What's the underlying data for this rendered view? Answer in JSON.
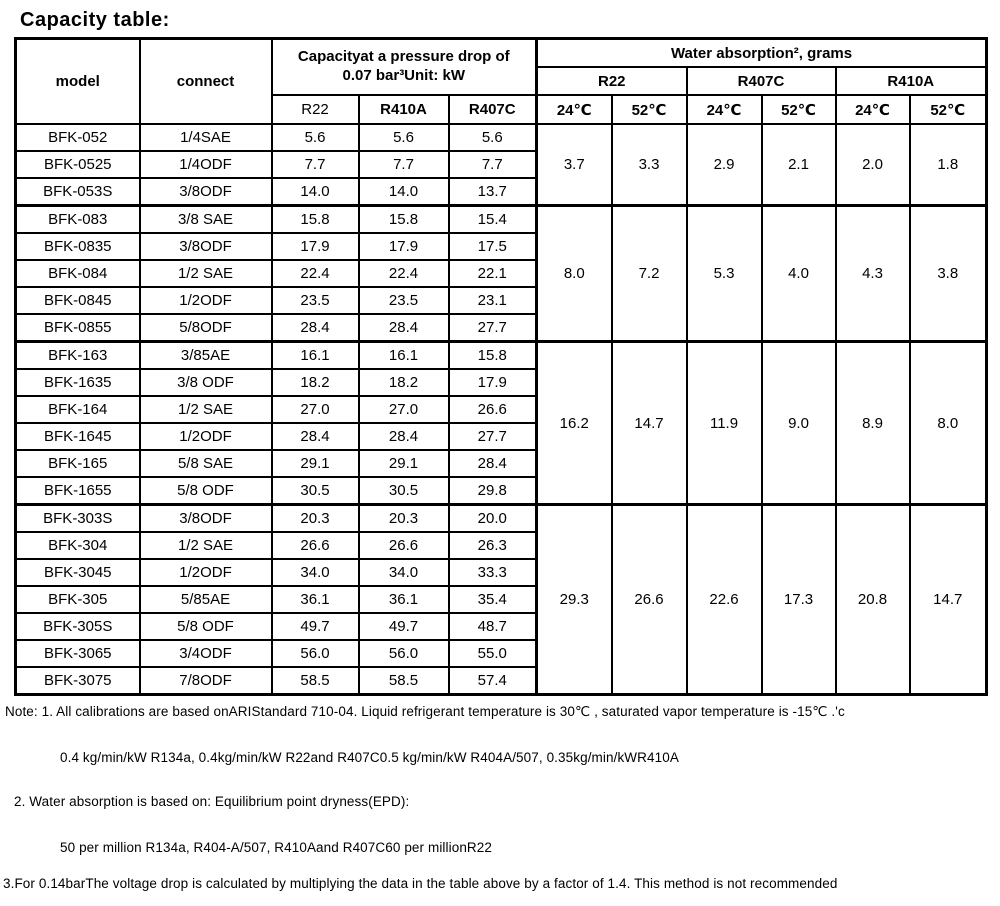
{
  "title": "Capacity table:",
  "table": {
    "header": {
      "model": "model",
      "connect": "connect",
      "capacity_line1": "Capacityat a pressure drop of",
      "capacity_line2": "0.07 bar³Unit: kW",
      "water_group": "Water absorption², grams",
      "capacity_cols": [
        "R22",
        "R410A",
        "R407C"
      ],
      "water_refrigerants": [
        "R22",
        "R407C",
        "R410A"
      ],
      "temps": [
        "24℃",
        "52℃",
        "24℃",
        "52℃",
        "24℃",
        "52℃"
      ]
    },
    "groups": [
      {
        "rows": [
          {
            "model": "BFK-052",
            "connect": "1/4SAE",
            "kw": [
              "5.6",
              "5.6",
              "5.6"
            ]
          },
          {
            "model": "BFK-0525",
            "connect": "1/4ODF",
            "kw": [
              "7.7",
              "7.7",
              "7.7"
            ]
          },
          {
            "model": "BFK-053S",
            "connect": "3/8ODF",
            "kw": [
              "14.0",
              "14.0",
              "13.7"
            ]
          }
        ],
        "absorption": [
          "3.7",
          "3.3",
          "2.9",
          "2.1",
          "2.0",
          "1.8"
        ]
      },
      {
        "rows": [
          {
            "model": "BFK-083",
            "connect": "3/8 SAE",
            "kw": [
              "15.8",
              "15.8",
              "15.4"
            ]
          },
          {
            "model": "BFK-0835",
            "connect": "3/8ODF",
            "kw": [
              "17.9",
              "17.9",
              "17.5"
            ]
          },
          {
            "model": "BFK-084",
            "connect": "1/2 SAE",
            "kw": [
              "22.4",
              "22.4",
              "22.1"
            ]
          },
          {
            "model": "BFK-0845",
            "connect": "1/2ODF",
            "kw": [
              "23.5",
              "23.5",
              "23.1"
            ]
          },
          {
            "model": "BFK-0855",
            "connect": "5/8ODF",
            "kw": [
              "28.4",
              "28.4",
              "27.7"
            ]
          }
        ],
        "absorption": [
          "8.0",
          "7.2",
          "5.3",
          "4.0",
          "4.3",
          "3.8"
        ]
      },
      {
        "rows": [
          {
            "model": "BFK-163",
            "connect": "3/85AE",
            "kw": [
              "16.1",
              "16.1",
              "15.8"
            ]
          },
          {
            "model": "BFK-1635",
            "connect": "3/8 ODF",
            "kw": [
              "18.2",
              "18.2",
              "17.9"
            ]
          },
          {
            "model": "BFK-164",
            "connect": "1/2 SAE",
            "kw": [
              "27.0",
              "27.0",
              "26.6"
            ]
          },
          {
            "model": "BFK-1645",
            "connect": "1/2ODF",
            "kw": [
              "28.4",
              "28.4",
              "27.7"
            ]
          },
          {
            "model": "BFK-165",
            "connect": "5/8 SAE",
            "kw": [
              "29.1",
              "29.1",
              "28.4"
            ]
          },
          {
            "model": "BFK-1655",
            "connect": "5/8 ODF",
            "kw": [
              "30.5",
              "30.5",
              "29.8"
            ]
          }
        ],
        "absorption": [
          "16.2",
          "14.7",
          "11.9",
          "9.0",
          "8.9",
          "8.0"
        ]
      },
      {
        "rows": [
          {
            "model": "BFK-303S",
            "connect": "3/8ODF",
            "kw": [
              "20.3",
              "20.3",
              "20.0"
            ]
          },
          {
            "model": "BFK-304",
            "connect": "1/2 SAE",
            "kw": [
              "26.6",
              "26.6",
              "26.3"
            ]
          },
          {
            "model": "BFK-3045",
            "connect": "1/2ODF",
            "kw": [
              "34.0",
              "34.0",
              "33.3"
            ]
          },
          {
            "model": "BFK-305",
            "connect": "5/85AE",
            "kw": [
              "36.1",
              "36.1",
              "35.4"
            ]
          },
          {
            "model": "BFK-305S",
            "connect": "5/8 ODF",
            "kw": [
              "49.7",
              "49.7",
              "48.7"
            ]
          },
          {
            "model": "BFK-3065",
            "connect": "3/4ODF",
            "kw": [
              "56.0",
              "56.0",
              "55.0"
            ]
          },
          {
            "model": "BFK-3075",
            "connect": "7/8ODF",
            "kw": [
              "58.5",
              "58.5",
              "57.4"
            ]
          }
        ],
        "absorption": [
          "29.3",
          "26.6",
          "22.6",
          "17.3",
          "20.8",
          "14.7"
        ]
      }
    ]
  },
  "notes": {
    "line1": "Note: 1. All calibrations are based onARIStandard 710-04. Liquid refrigerant temperature is 30℃ , saturated vapor temperature is -15℃ .'c",
    "line2": "0.4 kg/min/kW R134a, 0.4kg/min/kW R22and R407C0.5 kg/min/kW R404A/507, 0.35kg/min/kWR410A",
    "line3": "2. Water absorption is based on: Equilibrium point dryness(EPD):",
    "line4": "50 per million R134a, R404-A/507, R410Aand R407C60 per millionR22",
    "line5": "3.For 0.14barThe voltage drop is calculated by multiplying the data in the table above by a factor of 1.4. This method is not recommended"
  }
}
